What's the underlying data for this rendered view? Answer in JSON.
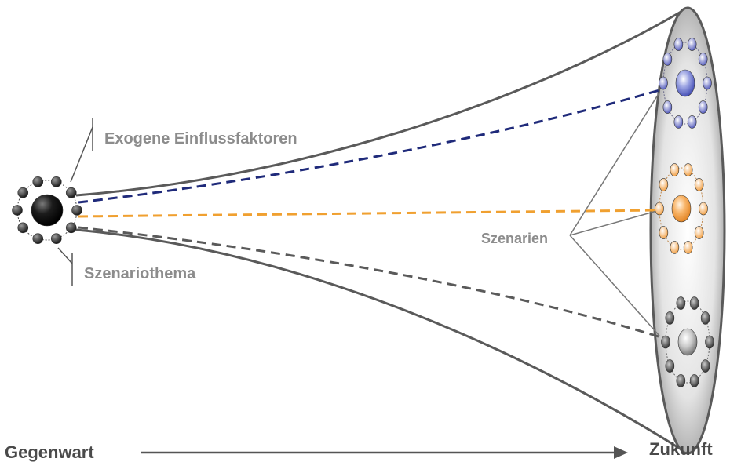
{
  "labels": {
    "exogenous_factors": "Exogene Einflussfaktoren",
    "scenario_topic": "Szenariothema",
    "scenarios": "Szenarien",
    "present": "Gegenwart",
    "future": "Zukunft"
  },
  "colors": {
    "funnel_outline": "#5a5a5a",
    "label_gray": "#8c8c8c",
    "axis_text": "#4a4a4a",
    "scenario_blue": "#1f2a7a",
    "scenario_orange": "#f0a030",
    "scenario_gray": "#5a5a5a",
    "core_dark": "#111111"
  },
  "icons": {
    "topic_cluster": "black-core-with-satellite-nodes",
    "scenario_clusters": [
      "blue-node-cluster",
      "orange-node-cluster",
      "gray-node-cluster"
    ],
    "time_arrow": "right-arrow"
  }
}
